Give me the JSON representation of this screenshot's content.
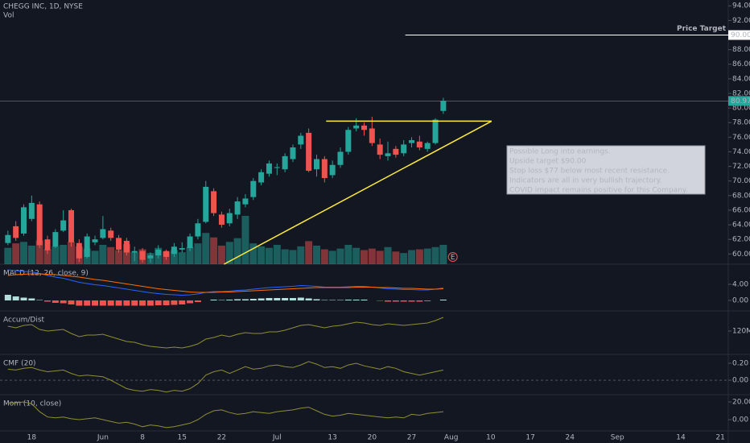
{
  "chart_data": [
    {
      "type": "candlestick",
      "title": "CHEGG INC, 1D, NYSE",
      "volume_title": "Vol",
      "open": [
        61.5,
        63.8,
        62.8,
        64.8,
        66.8,
        62.0,
        61.0,
        63.2,
        66.0,
        61.5,
        59.6,
        61.6,
        62.2,
        63.2,
        62.2,
        61.8,
        60.2,
        60.4,
        59.4,
        59.8,
        60.4,
        60.0,
        60.6,
        60.8,
        62.4,
        64.4,
        68.6,
        65.4,
        64.2,
        65.4,
        66.8,
        67.8,
        69.8,
        71.0,
        71.8,
        71.6,
        73.0,
        75.0,
        76.6,
        71.6,
        73.0,
        70.8,
        72.2,
        74.0,
        77.2,
        77.6,
        77.2,
        75.0,
        73.4,
        74.4,
        73.8,
        75.2,
        75.4,
        74.4,
        75.2,
        79.6
      ],
      "high": [
        63.2,
        64.5,
        66.8,
        68.0,
        67.2,
        62.5,
        63.4,
        66.0,
        66.2,
        62.0,
        62.8,
        62.5,
        65.2,
        63.6,
        62.6,
        62.2,
        61.0,
        60.8,
        60.2,
        61.2,
        60.6,
        61.5,
        61.6,
        62.8,
        64.8,
        70.0,
        69.0,
        65.8,
        66.2,
        67.8,
        68.2,
        70.4,
        71.6,
        72.8,
        72.4,
        73.8,
        75.0,
        76.6,
        77.2,
        73.6,
        73.4,
        72.8,
        74.6,
        77.4,
        78.6,
        78.0,
        78.8,
        75.8,
        75.4,
        74.8,
        75.6,
        76.0,
        76.2,
        75.4,
        78.6,
        81.4
      ],
      "low": [
        61.2,
        61.8,
        62.5,
        64.5,
        60.8,
        60.0,
        60.8,
        63.0,
        61.0,
        58.9,
        59.4,
        61.2,
        62.0,
        61.8,
        60.2,
        59.8,
        59.0,
        58.8,
        58.8,
        59.4,
        59.2,
        59.6,
        60.2,
        60.4,
        62.0,
        64.2,
        65.2,
        63.6,
        63.8,
        64.8,
        66.4,
        67.4,
        69.4,
        70.6,
        70.8,
        71.2,
        72.6,
        74.4,
        71.2,
        70.6,
        69.8,
        70.4,
        71.8,
        73.6,
        76.8,
        76.2,
        74.8,
        73.0,
        72.8,
        73.2,
        73.4,
        74.6,
        74.2,
        74.0,
        75.0,
        79.2
      ],
      "close": [
        62.6,
        62.2,
        66.4,
        67.0,
        61.2,
        60.5,
        63.0,
        64.6,
        61.6,
        59.4,
        62.4,
        62.0,
        63.4,
        62.2,
        60.6,
        60.2,
        60.4,
        59.2,
        59.8,
        60.6,
        59.6,
        61.0,
        60.8,
        62.4,
        64.2,
        69.2,
        65.6,
        64.0,
        65.6,
        67.2,
        67.6,
        70.0,
        71.2,
        72.4,
        71.9,
        73.4,
        74.6,
        76.2,
        71.4,
        73.0,
        70.4,
        72.2,
        74.0,
        77.0,
        77.6,
        77.0,
        75.2,
        73.6,
        73.8,
        73.6,
        75.0,
        75.6,
        74.6,
        75.2,
        78.4,
        80.97
      ],
      "volume": [
        2.2,
        2.8,
        3.0,
        2.5,
        3.2,
        2.0,
        2.4,
        2.6,
        3.0,
        2.4,
        2.1,
        1.8,
        2.6,
        2.3,
        1.9,
        2.7,
        1.6,
        2.0,
        1.5,
        2.2,
        1.7,
        1.9,
        1.6,
        2.3,
        2.8,
        4.2,
        3.6,
        2.5,
        3.0,
        3.5,
        6.5,
        2.8,
        2.4,
        2.2,
        2.6,
        2.0,
        1.9,
        2.4,
        3.1,
        2.5,
        2.0,
        1.8,
        2.1,
        2.6,
        2.2,
        1.9,
        2.1,
        1.8,
        2.3,
        1.7,
        1.5,
        1.9,
        2.0,
        2.1,
        2.3,
        2.6
      ],
      "up_color": "#26a69a",
      "down_color": "#ef5350",
      "ylim": [
        58.6,
        94.8
      ],
      "yticks": [
        {
          "value": 60,
          "label": "60.00"
        },
        {
          "value": 62,
          "label": "62.00"
        },
        {
          "value": 64,
          "label": "64.00"
        },
        {
          "value": 66,
          "label": "66.00"
        },
        {
          "value": 68,
          "label": "68.00"
        },
        {
          "value": 70,
          "label": "70.00"
        },
        {
          "value": 72,
          "label": "72.00"
        },
        {
          "value": 74,
          "label": "74.00"
        },
        {
          "value": 76,
          "label": "76.00"
        },
        {
          "value": 78,
          "label": "78.00"
        },
        {
          "value": 80,
          "label": "80.00"
        },
        {
          "value": 82,
          "label": "82.00"
        },
        {
          "value": 84,
          "label": "84.00"
        },
        {
          "value": 86,
          "label": "86.00"
        },
        {
          "value": 88,
          "label": "88.00"
        },
        {
          "value": 92,
          "label": "92.00"
        },
        {
          "value": 94,
          "label": "94.00"
        }
      ],
      "xlim": [
        -1,
        91
      ],
      "xticks": [
        {
          "value": 3,
          "label": "18"
        },
        {
          "value": 12,
          "label": "Jun"
        },
        {
          "value": 17,
          "label": "8"
        },
        {
          "value": 22,
          "label": "15"
        },
        {
          "value": 27,
          "label": "22"
        },
        {
          "value": 34,
          "label": "Jul"
        },
        {
          "value": 41,
          "label": "13"
        },
        {
          "value": 46,
          "label": "20"
        },
        {
          "value": 51,
          "label": "27"
        },
        {
          "value": 56,
          "label": "Aug"
        },
        {
          "value": 61,
          "label": "10"
        },
        {
          "value": 66,
          "label": "17"
        },
        {
          "value": 71,
          "label": "24"
        },
        {
          "value": 77,
          "label": "Sep"
        },
        {
          "value": 85,
          "label": "14"
        },
        {
          "value": 90,
          "label": "21"
        }
      ],
      "last_price": {
        "value": 80.97,
        "label": "80.97"
      },
      "price_target": {
        "text": "Price Target",
        "value": 90,
        "label": "90.00",
        "x": 50.2
      },
      "trendlines": [
        {
          "x": [
            40.2,
            61.1
          ],
          "y": [
            78.2,
            78.2
          ],
          "color": "#ffeb3b"
        },
        {
          "x": [
            27.3,
            61.1
          ],
          "y": [
            58.6,
            78.2
          ],
          "color": "#ffeb3b"
        }
      ],
      "annotation": [
        "Possible Long into earnings.",
        "Upside target $90.00",
        "Stop loss $77 below most recent resistance.",
        "Indicators are all in very bullish trajectory.",
        "COVID impact remains positive for this Company."
      ],
      "earnings": {
        "x": 56.2,
        "label": "E"
      }
    },
    {
      "type": "macd",
      "title": "MACD (12, 26, close, 9)",
      "series": [
        {
          "color": "#2962ff",
          "values": [
            7.6,
            7.4,
            7.2,
            7.1,
            6.7,
            6.2,
            5.8,
            5.5,
            5.0,
            4.5,
            4.2,
            3.9,
            3.7,
            3.4,
            3.1,
            2.8,
            2.5,
            2.2,
            1.9,
            1.7,
            1.5,
            1.4,
            1.3,
            1.4,
            1.6,
            2.0,
            2.2,
            2.2,
            2.3,
            2.5,
            2.6,
            2.8,
            3.0,
            3.2,
            3.3,
            3.4,
            3.5,
            3.7,
            3.6,
            3.5,
            3.3,
            3.3,
            3.3,
            3.4,
            3.5,
            3.5,
            3.3,
            3.1,
            2.9,
            2.8,
            2.7,
            2.7,
            2.6,
            2.6,
            2.8,
            3.1
          ]
        },
        {
          "color": "#ff6d00",
          "values": [
            6.2,
            6.4,
            6.5,
            6.6,
            6.6,
            6.5,
            6.4,
            6.2,
            6.0,
            5.8,
            5.5,
            5.2,
            5.0,
            4.7,
            4.4,
            4.1,
            3.8,
            3.5,
            3.2,
            2.9,
            2.7,
            2.5,
            2.3,
            2.1,
            2.0,
            2.0,
            2.0,
            2.1,
            2.1,
            2.2,
            2.3,
            2.4,
            2.5,
            2.6,
            2.7,
            2.8,
            2.9,
            3.0,
            3.1,
            3.2,
            3.2,
            3.2,
            3.2,
            3.2,
            3.3,
            3.3,
            3.3,
            3.2,
            3.2,
            3.1,
            3.0,
            3.0,
            2.9,
            2.8,
            2.8,
            2.9
          ]
        }
      ],
      "histogram": [
        1.4,
        1.0,
        0.7,
        0.5,
        0.1,
        -0.3,
        -0.6,
        -0.7,
        -1.0,
        -1.3,
        -1.3,
        -1.3,
        -1.3,
        -1.3,
        -1.3,
        -1.3,
        -1.3,
        -1.3,
        -1.3,
        -1.2,
        -1.2,
        -1.1,
        -1.0,
        -0.7,
        -0.4,
        0.0,
        0.2,
        0.1,
        0.2,
        0.3,
        0.3,
        0.4,
        0.5,
        0.6,
        0.6,
        0.6,
        0.6,
        0.7,
        0.5,
        0.3,
        0.1,
        0.1,
        0.1,
        0.2,
        0.2,
        0.2,
        0.0,
        -0.1,
        -0.3,
        -0.3,
        -0.3,
        -0.3,
        -0.3,
        -0.2,
        0.0,
        0.2
      ],
      "hist_up_color": "#b2dfdb",
      "hist_down_color": "#ef5350",
      "ylim": [
        -2.6,
        9
      ],
      "yticks": [
        {
          "value": 4,
          "label": "4.00"
        },
        {
          "value": 0,
          "label": "0.00"
        }
      ]
    },
    {
      "type": "line",
      "title": "Accum/Dist",
      "color": "#8d8f30",
      "values": [
        126000000,
        124000000,
        127000000,
        128000000,
        122000000,
        120000000,
        121000000,
        122000000,
        117000000,
        113000000,
        115000000,
        115000000,
        116000000,
        113000000,
        110000000,
        107000000,
        106000000,
        103000000,
        101000000,
        100000000,
        99000000,
        100000000,
        99000000,
        101000000,
        104000000,
        110000000,
        112000000,
        115000000,
        113000000,
        116000000,
        118000000,
        117000000,
        117000000,
        119000000,
        119000000,
        121000000,
        124000000,
        127000000,
        128000000,
        126000000,
        124000000,
        126000000,
        127000000,
        129000000,
        131000000,
        130000000,
        128000000,
        127000000,
        129000000,
        128000000,
        127000000,
        128000000,
        129000000,
        130000000,
        133000000,
        137000000
      ],
      "ylim": [
        91000000,
        145000000
      ],
      "yticks": [
        {
          "value": 120000000,
          "label": "120M"
        }
      ]
    },
    {
      "type": "line",
      "title": "CMF (20)",
      "color": "#8d8f30",
      "zero_line": true,
      "values": [
        0.13,
        0.12,
        0.14,
        0.15,
        0.12,
        0.1,
        0.11,
        0.12,
        0.08,
        0.05,
        0.06,
        0.05,
        0.04,
        0.0,
        -0.05,
        -0.1,
        -0.12,
        -0.13,
        -0.11,
        -0.12,
        -0.14,
        -0.12,
        -0.13,
        -0.1,
        -0.04,
        0.06,
        0.1,
        0.12,
        0.08,
        0.12,
        0.16,
        0.13,
        0.14,
        0.17,
        0.18,
        0.16,
        0.15,
        0.18,
        0.22,
        0.19,
        0.15,
        0.16,
        0.14,
        0.18,
        0.2,
        0.17,
        0.15,
        0.13,
        0.16,
        0.14,
        0.1,
        0.08,
        0.06,
        0.08,
        0.1,
        0.12
      ],
      "ylim": [
        -0.171,
        0.305
      ],
      "yticks": [
        {
          "value": 0.2,
          "label": "0.20"
        },
        {
          "value": 0,
          "label": "0.00"
        }
      ]
    },
    {
      "type": "line",
      "title": "Mom (10, close)",
      "color": "#8d8f30",
      "values": [
        19,
        19,
        20,
        18,
        9,
        3,
        2,
        3,
        1,
        0,
        1,
        2,
        0,
        -2,
        -4,
        -3,
        -5,
        -8,
        -6,
        -7,
        -9,
        -8,
        -6,
        -4,
        0,
        6,
        10,
        11,
        8,
        6,
        7,
        9,
        8,
        7,
        9,
        10,
        11,
        13,
        14,
        10,
        6,
        4,
        5,
        7,
        6,
        5,
        4,
        3,
        2,
        3,
        2,
        6,
        5,
        7,
        8,
        9
      ],
      "ylim": [
        -12.7,
        28.2
      ],
      "yticks": [
        {
          "value": 20,
          "label": "20.00"
        },
        {
          "value": 0,
          "label": "0.00"
        }
      ]
    }
  ]
}
